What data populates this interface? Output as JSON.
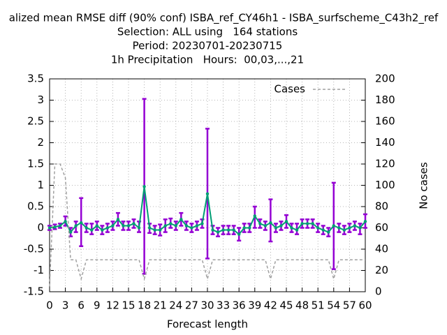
{
  "chart_data": {
    "type": "errorbar-line",
    "title_lines": [
      "alized mean RMSE diff (90% conf) ISBA_ref_CY46h1 - ISBA_surfscheme_C43h2_ref",
      "Selection: ALL using   164 stations",
      "Period: 20230701-20230715",
      "1h Precipitation   Hours:  00,03,...,21"
    ],
    "x_label": "Forecast length",
    "y2_label": "No cases",
    "x": [
      0,
      1,
      2,
      3,
      4,
      5,
      6,
      7,
      8,
      9,
      10,
      11,
      12,
      13,
      14,
      15,
      16,
      17,
      18,
      19,
      20,
      21,
      22,
      23,
      24,
      25,
      26,
      27,
      28,
      29,
      30,
      31,
      32,
      33,
      34,
      35,
      36,
      37,
      38,
      39,
      40,
      41,
      42,
      43,
      44,
      45,
      46,
      47,
      48,
      49,
      50,
      51,
      52,
      53,
      54,
      55,
      56,
      57,
      58,
      59,
      60
    ],
    "xlim": [
      0,
      60
    ],
    "xticks": [
      0,
      3,
      6,
      9,
      12,
      15,
      18,
      21,
      24,
      27,
      30,
      33,
      36,
      39,
      42,
      45,
      48,
      51,
      54,
      57,
      60
    ],
    "ylim": [
      -1.5,
      3.5
    ],
    "yticks": [
      -1.5,
      -1,
      -0.5,
      0,
      0.5,
      1,
      1.5,
      2,
      2.5,
      3,
      3.5
    ],
    "y2lim": [
      0,
      200
    ],
    "y2ticks": [
      0,
      20,
      40,
      60,
      80,
      100,
      120,
      140,
      160,
      180,
      200
    ],
    "grid": true,
    "legend": "top-right",
    "series": [
      {
        "color": "#009e73",
        "error_color": "#9400d3",
        "values": [
          0,
          0.02,
          0.05,
          0.15,
          -0.1,
          0.05,
          0.12,
          0,
          -0.05,
          0.05,
          -0.05,
          0,
          0.05,
          0.2,
          0.05,
          0.05,
          0.1,
          0,
          0.97,
          0,
          -0.05,
          -0.05,
          0.05,
          0.1,
          0.05,
          0.2,
          0.05,
          0,
          0.05,
          0.1,
          0.8,
          -0.05,
          -0.1,
          -0.05,
          -0.05,
          -0.05,
          -0.15,
          0,
          0,
          0.28,
          0.1,
          0.05,
          0.12,
          0,
          0.05,
          0.15,
          0,
          -0.05,
          0.1,
          0.1,
          0.1,
          0,
          -0.05,
          -0.1,
          0.05,
          0,
          -0.05,
          0,
          0.05,
          0,
          0.15
        ],
        "error_low": [
          -0.05,
          -0.03,
          0,
          0.05,
          -0.2,
          -0.1,
          -0.43,
          -0.1,
          -0.15,
          -0.05,
          -0.15,
          -0.1,
          -0.05,
          0.05,
          -0.05,
          -0.05,
          0,
          -0.1,
          -1.08,
          -0.12,
          -0.15,
          -0.18,
          -0.1,
          0,
          -0.05,
          0.05,
          -0.05,
          -0.1,
          -0.05,
          0,
          -0.72,
          -0.15,
          -0.2,
          -0.15,
          -0.15,
          -0.15,
          -0.3,
          -0.1,
          -0.1,
          0,
          0,
          -0.05,
          -0.32,
          -0.1,
          -0.05,
          0,
          -0.1,
          -0.15,
          0,
          0,
          0,
          -0.1,
          -0.15,
          -0.2,
          -0.97,
          -0.1,
          -0.15,
          -0.1,
          -0.05,
          -0.15,
          0
        ],
        "error_high": [
          0.05,
          0.08,
          0.1,
          0.27,
          0,
          0.15,
          0.7,
          0.1,
          0.1,
          0.15,
          0.05,
          0.1,
          0.15,
          0.35,
          0.15,
          0.15,
          0.2,
          0.15,
          3.03,
          0.1,
          0.05,
          0.08,
          0.2,
          0.22,
          0.15,
          0.35,
          0.15,
          0.1,
          0.15,
          0.2,
          2.33,
          0.05,
          0,
          0.05,
          0.05,
          0.05,
          0,
          0.1,
          0.1,
          0.5,
          0.2,
          0.15,
          0.67,
          0.1,
          0.15,
          0.3,
          0.1,
          0.1,
          0.2,
          0.2,
          0.2,
          0.1,
          0.05,
          0,
          1.06,
          0.1,
          0.05,
          0.1,
          0.15,
          0.1,
          0.32
        ]
      },
      {
        "name": "Cases",
        "axis": "y2",
        "color": "#a0a0a0",
        "values": [
          5,
          120,
          120,
          107,
          30,
          30,
          12,
          30,
          30,
          30,
          30,
          30,
          30,
          30,
          30,
          30,
          30,
          30,
          12,
          30,
          30,
          30,
          30,
          30,
          30,
          30,
          30,
          30,
          30,
          30,
          12,
          30,
          30,
          30,
          30,
          30,
          30,
          30,
          30,
          30,
          30,
          30,
          12,
          30,
          30,
          30,
          30,
          30,
          30,
          30,
          30,
          30,
          30,
          30,
          12,
          30,
          30,
          30,
          30,
          30,
          30
        ]
      }
    ]
  }
}
